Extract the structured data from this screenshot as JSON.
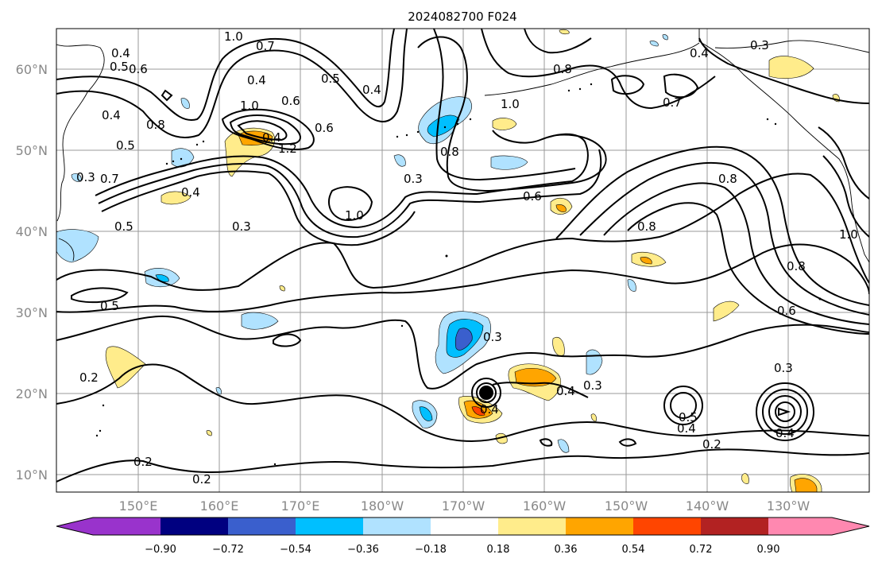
{
  "title": "2024082700 F024",
  "map": {
    "lat_labels": [
      "60°N",
      "50°N",
      "40°N",
      "30°N",
      "20°N",
      "10°N"
    ],
    "lon_labels": [
      "150°E",
      "160°E",
      "170°E",
      "180°W",
      "170°W",
      "160°W",
      "150°W",
      "140°W",
      "130°W"
    ],
    "contour_labels": [
      "1.0",
      "0.7",
      "0.4",
      "0.5",
      "0.6",
      "0.4",
      "0.5",
      "0.4",
      "1.0",
      "0.4",
      "0.3",
      "0.4",
      "0.6",
      "0.8",
      "0.5",
      "1.0",
      "1.2",
      "0.4",
      "0.6",
      "0.7",
      "0.8",
      "1.0",
      "0.4",
      "0.8",
      "0.3",
      "0.6",
      "0.7",
      "0.8",
      "0.8",
      "0.5",
      "0.3",
      "1.0",
      "0.8",
      "0.3",
      "0.5",
      "0.6",
      "0.3",
      "0.3",
      "0.2",
      "0.4",
      "0.4",
      "0.5",
      "0.4",
      "0.4",
      "0.2",
      "0.2",
      "0.2",
      "0.3"
    ]
  },
  "colorbar": {
    "colors": [
      "#9933cc",
      "#000080",
      "#3a5fcd",
      "#00bfff",
      "#b0e2ff",
      "#ffffff",
      "#ffec8b",
      "#ffa500",
      "#ff4500",
      "#b22222",
      "#ff88b0"
    ],
    "tick_labels": [
      "−0.90",
      "−0.72",
      "−0.54",
      "−0.36",
      "−0.18",
      "0.18",
      "0.36",
      "0.54",
      "0.72",
      "0.90"
    ]
  }
}
